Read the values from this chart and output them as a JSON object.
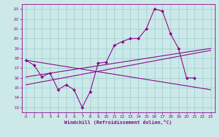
{
  "xlabel": "Windchill (Refroidissement éolien,°C)",
  "bg_color": "#cce8e8",
  "grid_color": "#99cccc",
  "line_color": "#880088",
  "x_ticks": [
    0,
    1,
    2,
    3,
    4,
    5,
    6,
    7,
    8,
    9,
    10,
    11,
    12,
    13,
    14,
    15,
    16,
    17,
    18,
    19,
    20,
    21,
    22,
    23
  ],
  "y_ticks": [
    13,
    14,
    15,
    16,
    17,
    18,
    19,
    20,
    21,
    22,
    23
  ],
  "xlim": [
    -0.5,
    23.5
  ],
  "ylim": [
    12.5,
    23.5
  ],
  "zigzag_x": [
    0,
    1,
    2,
    3,
    4,
    5,
    6,
    7,
    8,
    9,
    10,
    11,
    12,
    13,
    14,
    15,
    16,
    17,
    18,
    19,
    20,
    21
  ],
  "zigzag_y": [
    17.8,
    17.3,
    16.1,
    16.5,
    14.8,
    15.3,
    14.8,
    13.0,
    14.6,
    17.5,
    17.6,
    19.3,
    19.7,
    20.0,
    20.0,
    21.0,
    23.0,
    22.8,
    20.5,
    19.0,
    16.0,
    16.0
  ],
  "line1_pts": [
    [
      0,
      17.8
    ],
    [
      23,
      14.8
    ]
  ],
  "line2_pts": [
    [
      0,
      16.1
    ],
    [
      23,
      19.0
    ]
  ],
  "line3_pts": [
    [
      0,
      15.3
    ],
    [
      23,
      18.8
    ]
  ]
}
